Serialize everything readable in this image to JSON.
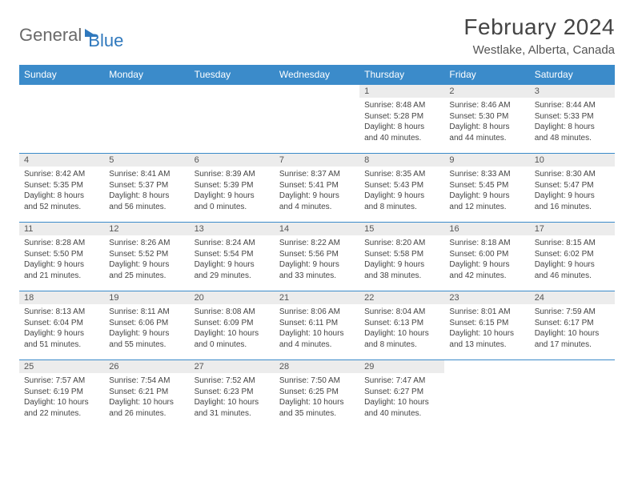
{
  "brand": {
    "part1": "General",
    "part2": "Blue"
  },
  "header": {
    "title": "February 2024",
    "location": "Westlake, Alberta, Canada"
  },
  "colors": {
    "header_bg": "#3b8bca",
    "header_fg": "#ffffff",
    "daynum_bg": "#ececec",
    "rule": "#3b8bca",
    "logo_gray": "#6a6a6a",
    "logo_blue": "#2f78bd"
  },
  "weekdays": [
    "Sunday",
    "Monday",
    "Tuesday",
    "Wednesday",
    "Thursday",
    "Friday",
    "Saturday"
  ],
  "weeks": [
    [
      null,
      null,
      null,
      null,
      {
        "n": "1",
        "sr": "8:48 AM",
        "ss": "5:28 PM",
        "dl": "8 hours and 40 minutes."
      },
      {
        "n": "2",
        "sr": "8:46 AM",
        "ss": "5:30 PM",
        "dl": "8 hours and 44 minutes."
      },
      {
        "n": "3",
        "sr": "8:44 AM",
        "ss": "5:33 PM",
        "dl": "8 hours and 48 minutes."
      }
    ],
    [
      {
        "n": "4",
        "sr": "8:42 AM",
        "ss": "5:35 PM",
        "dl": "8 hours and 52 minutes."
      },
      {
        "n": "5",
        "sr": "8:41 AM",
        "ss": "5:37 PM",
        "dl": "8 hours and 56 minutes."
      },
      {
        "n": "6",
        "sr": "8:39 AM",
        "ss": "5:39 PM",
        "dl": "9 hours and 0 minutes."
      },
      {
        "n": "7",
        "sr": "8:37 AM",
        "ss": "5:41 PM",
        "dl": "9 hours and 4 minutes."
      },
      {
        "n": "8",
        "sr": "8:35 AM",
        "ss": "5:43 PM",
        "dl": "9 hours and 8 minutes."
      },
      {
        "n": "9",
        "sr": "8:33 AM",
        "ss": "5:45 PM",
        "dl": "9 hours and 12 minutes."
      },
      {
        "n": "10",
        "sr": "8:30 AM",
        "ss": "5:47 PM",
        "dl": "9 hours and 16 minutes."
      }
    ],
    [
      {
        "n": "11",
        "sr": "8:28 AM",
        "ss": "5:50 PM",
        "dl": "9 hours and 21 minutes."
      },
      {
        "n": "12",
        "sr": "8:26 AM",
        "ss": "5:52 PM",
        "dl": "9 hours and 25 minutes."
      },
      {
        "n": "13",
        "sr": "8:24 AM",
        "ss": "5:54 PM",
        "dl": "9 hours and 29 minutes."
      },
      {
        "n": "14",
        "sr": "8:22 AM",
        "ss": "5:56 PM",
        "dl": "9 hours and 33 minutes."
      },
      {
        "n": "15",
        "sr": "8:20 AM",
        "ss": "5:58 PM",
        "dl": "9 hours and 38 minutes."
      },
      {
        "n": "16",
        "sr": "8:18 AM",
        "ss": "6:00 PM",
        "dl": "9 hours and 42 minutes."
      },
      {
        "n": "17",
        "sr": "8:15 AM",
        "ss": "6:02 PM",
        "dl": "9 hours and 46 minutes."
      }
    ],
    [
      {
        "n": "18",
        "sr": "8:13 AM",
        "ss": "6:04 PM",
        "dl": "9 hours and 51 minutes."
      },
      {
        "n": "19",
        "sr": "8:11 AM",
        "ss": "6:06 PM",
        "dl": "9 hours and 55 minutes."
      },
      {
        "n": "20",
        "sr": "8:08 AM",
        "ss": "6:09 PM",
        "dl": "10 hours and 0 minutes."
      },
      {
        "n": "21",
        "sr": "8:06 AM",
        "ss": "6:11 PM",
        "dl": "10 hours and 4 minutes."
      },
      {
        "n": "22",
        "sr": "8:04 AM",
        "ss": "6:13 PM",
        "dl": "10 hours and 8 minutes."
      },
      {
        "n": "23",
        "sr": "8:01 AM",
        "ss": "6:15 PM",
        "dl": "10 hours and 13 minutes."
      },
      {
        "n": "24",
        "sr": "7:59 AM",
        "ss": "6:17 PM",
        "dl": "10 hours and 17 minutes."
      }
    ],
    [
      {
        "n": "25",
        "sr": "7:57 AM",
        "ss": "6:19 PM",
        "dl": "10 hours and 22 minutes."
      },
      {
        "n": "26",
        "sr": "7:54 AM",
        "ss": "6:21 PM",
        "dl": "10 hours and 26 minutes."
      },
      {
        "n": "27",
        "sr": "7:52 AM",
        "ss": "6:23 PM",
        "dl": "10 hours and 31 minutes."
      },
      {
        "n": "28",
        "sr": "7:50 AM",
        "ss": "6:25 PM",
        "dl": "10 hours and 35 minutes."
      },
      {
        "n": "29",
        "sr": "7:47 AM",
        "ss": "6:27 PM",
        "dl": "10 hours and 40 minutes."
      },
      null,
      null
    ]
  ],
  "labels": {
    "sunrise": "Sunrise:",
    "sunset": "Sunset:",
    "daylight": "Daylight:"
  }
}
